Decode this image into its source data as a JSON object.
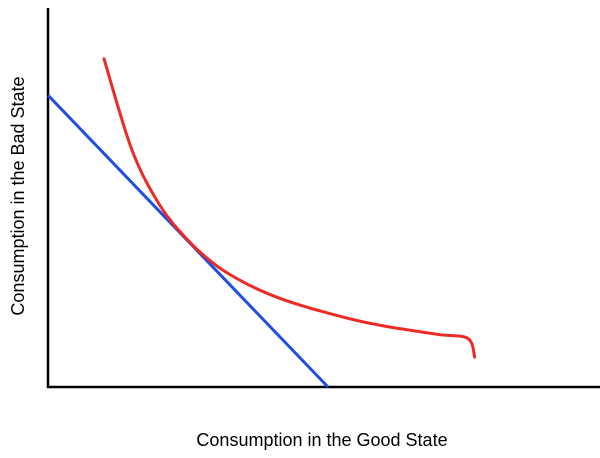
{
  "chart_data": {
    "type": "line",
    "title": "",
    "xlabel": "Consumption in the Good State",
    "ylabel": "Consumption in the Bad State",
    "xlim": [
      0,
      100
    ],
    "ylim": [
      0,
      100
    ],
    "grid": false,
    "tick_labels": false,
    "series": [
      {
        "kind": "budget-line",
        "color": "#1f4fe0",
        "points": [
          [
            0,
            77
          ],
          [
            50,
            0
          ]
        ]
      },
      {
        "kind": "indifference-curve",
        "color": "#ee2a24",
        "points": [
          [
            10,
            86.6
          ],
          [
            15,
            62.5
          ],
          [
            20,
            47.9
          ],
          [
            25,
            38.7
          ],
          [
            30,
            32.1
          ],
          [
            35,
            27.6
          ],
          [
            40,
            24.2
          ],
          [
            45,
            21.6
          ],
          [
            50,
            19.5
          ],
          [
            55,
            17.6
          ],
          [
            60,
            16.1
          ],
          [
            65,
            14.9
          ],
          [
            70,
            13.8
          ],
          [
            75,
            12.8
          ],
          [
            76.2,
            7.9
          ]
        ]
      }
    ]
  }
}
